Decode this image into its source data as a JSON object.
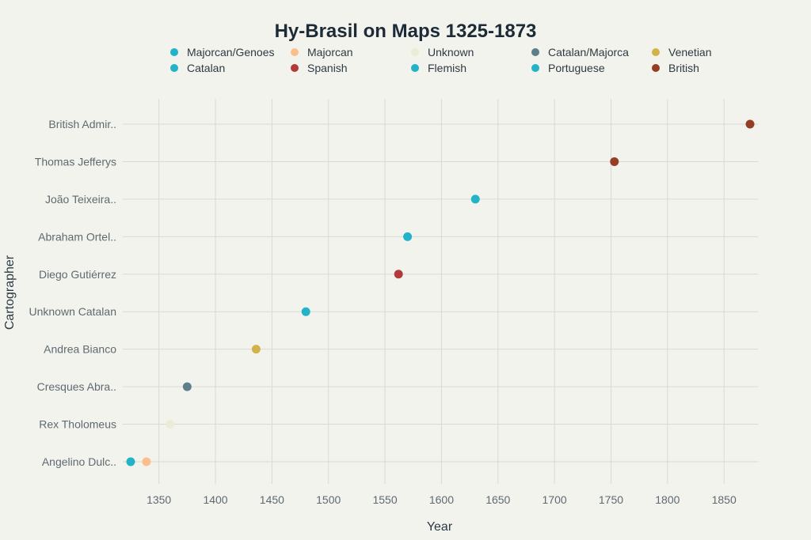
{
  "chart_data": {
    "type": "scatter",
    "title": "Hy-Brasil on Maps 1325-1873",
    "xlabel": "Year",
    "ylabel": "Cartographer",
    "xlim": [
      1318,
      1880
    ],
    "x_ticks": [
      1350,
      1400,
      1450,
      1500,
      1550,
      1600,
      1650,
      1700,
      1750,
      1800,
      1850
    ],
    "categories": [
      "Angelino Dulc..",
      "Rex Tholomeus",
      "Cresques Abra..",
      "Andrea Bianco",
      "Unknown Catalan",
      "Diego Gutiérrez",
      "Abraham Ortel..",
      "João Teixeira..",
      "Thomas Jefferys",
      "British Admir.."
    ],
    "grid": true,
    "legend_position": "top",
    "series": [
      {
        "name": "Majorcan/Genoes",
        "color": "#21b3c7",
        "points": [
          {
            "x": 1325,
            "y": "Angelino Dulc.."
          }
        ]
      },
      {
        "name": "Catalan",
        "color": "#21b3c7",
        "points": [
          {
            "x": 1480,
            "y": "Unknown Catalan"
          }
        ]
      },
      {
        "name": "Majorcan",
        "color": "#fbbf8c",
        "points": [
          {
            "x": 1339,
            "y": "Angelino Dulc.."
          }
        ]
      },
      {
        "name": "Spanish",
        "color": "#b23a3a",
        "points": [
          {
            "x": 1562,
            "y": "Diego Gutiérrez"
          }
        ]
      },
      {
        "name": "Unknown",
        "color": "#ecebd6",
        "points": [
          {
            "x": 1360,
            "y": "Rex Tholomeus"
          }
        ]
      },
      {
        "name": "Flemish",
        "color": "#21b3c7",
        "points": [
          {
            "x": 1570,
            "y": "Abraham Ortel.."
          }
        ]
      },
      {
        "name": "Catalan/Majorca",
        "color": "#5d7f8a",
        "points": [
          {
            "x": 1375,
            "y": "Cresques Abra.."
          }
        ]
      },
      {
        "name": "Portuguese",
        "color": "#21b3c7",
        "points": [
          {
            "x": 1630,
            "y": "João Teixeira.."
          }
        ]
      },
      {
        "name": "Venetian",
        "color": "#d2b347",
        "points": [
          {
            "x": 1436,
            "y": "Andrea Bianco"
          }
        ]
      },
      {
        "name": "British",
        "color": "#953e24",
        "points": [
          {
            "x": 1753,
            "y": "Thomas Jefferys"
          },
          {
            "x": 1873,
            "y": "British Admir.."
          }
        ]
      }
    ]
  }
}
